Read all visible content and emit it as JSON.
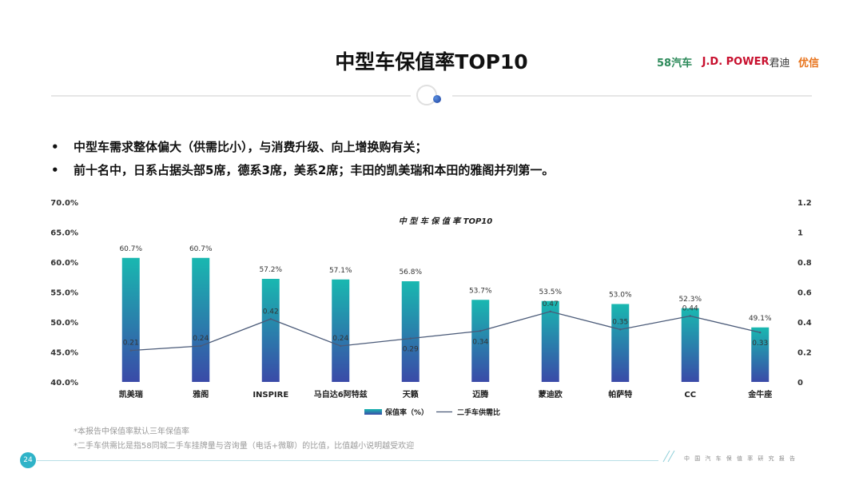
{
  "header": {
    "title": "中型车保值率TOP10",
    "logos": {
      "brand_58": "58汽车",
      "brand_jd": "J.D. POWER",
      "brand_jd_cn": "君迪",
      "brand_youxin": "优信"
    }
  },
  "bullets": [
    "中型车需求整体偏大（供需比小），与消费升级、向上增换购有关；",
    "前十名中，日系占据头部5席，德系3席，美系2席；丰田的凯美瑞和本田的雅阁并列第一。"
  ],
  "chart_data": {
    "type": "bar",
    "title": "中 型 车 保 值 率 TOP10",
    "categories": [
      "凯美瑞",
      "雅阁",
      "INSPIRE",
      "马自达6阿特兹",
      "天籁",
      "迈腾",
      "蒙迪欧",
      "帕萨特",
      "CC",
      "金牛座"
    ],
    "y_left_ticks": [
      "70.0%",
      "65.0%",
      "60.0%",
      "55.0%",
      "50.0%",
      "45.0%",
      "40.0%"
    ],
    "y_right_ticks": [
      "1.2",
      "1",
      "0.8",
      "0.6",
      "0.4",
      "0.2",
      "0"
    ],
    "ylim_left": [
      40,
      70
    ],
    "ylim_right": [
      0,
      1.2
    ],
    "series": [
      {
        "name": "保值率（%）",
        "kind": "bar",
        "axis": "left",
        "values": [
          60.7,
          60.7,
          57.2,
          57.1,
          56.8,
          53.7,
          53.5,
          53.0,
          52.3,
          49.1
        ],
        "labels": [
          "60.7%",
          "60.7%",
          "57.2%",
          "57.1%",
          "56.8%",
          "53.7%",
          "53.5%",
          "53.0%",
          "52.3%",
          "49.1%"
        ]
      },
      {
        "name": "二手车供需比",
        "kind": "line",
        "axis": "right",
        "values": [
          0.21,
          0.24,
          0.42,
          0.24,
          0.29,
          0.34,
          0.47,
          0.35,
          0.44,
          0.33
        ],
        "labels": [
          "0.21",
          "0.24",
          "0.42",
          "0.24",
          "0.29",
          "0.34",
          "0.47",
          "0.35",
          "0.44",
          "0.33"
        ]
      }
    ],
    "legend_position": "bottom",
    "grid": false,
    "colors": {
      "bar_top": "#19b8b0",
      "bar_bottom": "#3a4aa8",
      "line": "#4a5a78"
    }
  },
  "notes": [
    "*本报告中保值率默认三年保值率",
    "*二手车供需比是指58同城二手车挂牌量与咨询量（电话+微聊）的比值，比值越小说明越受欢迎"
  ],
  "footer": {
    "page": "24",
    "text": "中国汽车保值率研究报告"
  }
}
